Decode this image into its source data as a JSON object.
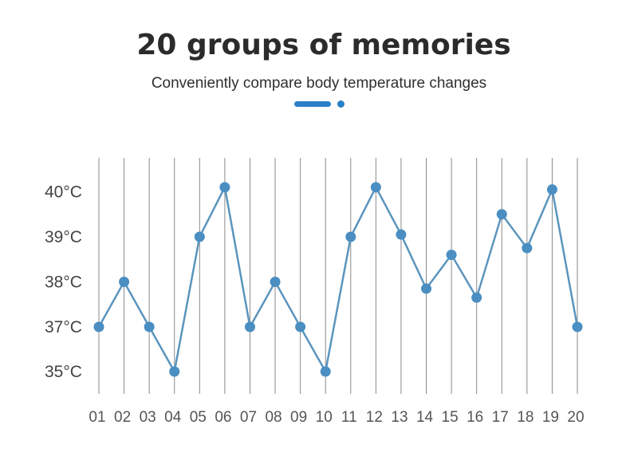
{
  "header": {
    "title": "20 groups of memories",
    "subtitle": "Conveniently compare body temperature changes"
  },
  "colors": {
    "accent": "#2a7fc7",
    "line": "#5b95bd",
    "marker": "#4a8ec2",
    "grid": "#8a8a8a"
  },
  "chart_data": {
    "type": "line",
    "categories": [
      "01",
      "02",
      "03",
      "04",
      "05",
      "06",
      "07",
      "08",
      "09",
      "10",
      "11",
      "12",
      "13",
      "14",
      "15",
      "16",
      "17",
      "18",
      "19",
      "20"
    ],
    "series": [
      {
        "values": [
          37,
          38,
          37,
          35,
          39,
          40.1,
          37,
          38,
          37,
          35,
          39,
          40.1,
          39.05,
          37.85,
          38.6,
          37.65,
          39.5,
          38.75,
          40.05,
          37
        ]
      }
    ],
    "y_ticks": [
      {
        "value": 35,
        "label": "35°C"
      },
      {
        "value": 37,
        "label": "37°C"
      },
      {
        "value": 38,
        "label": "38°C"
      },
      {
        "value": 39,
        "label": "39°C"
      },
      {
        "value": 40,
        "label": "40°C"
      }
    ],
    "xlabel": "",
    "ylabel": "",
    "grid": "vertical"
  }
}
